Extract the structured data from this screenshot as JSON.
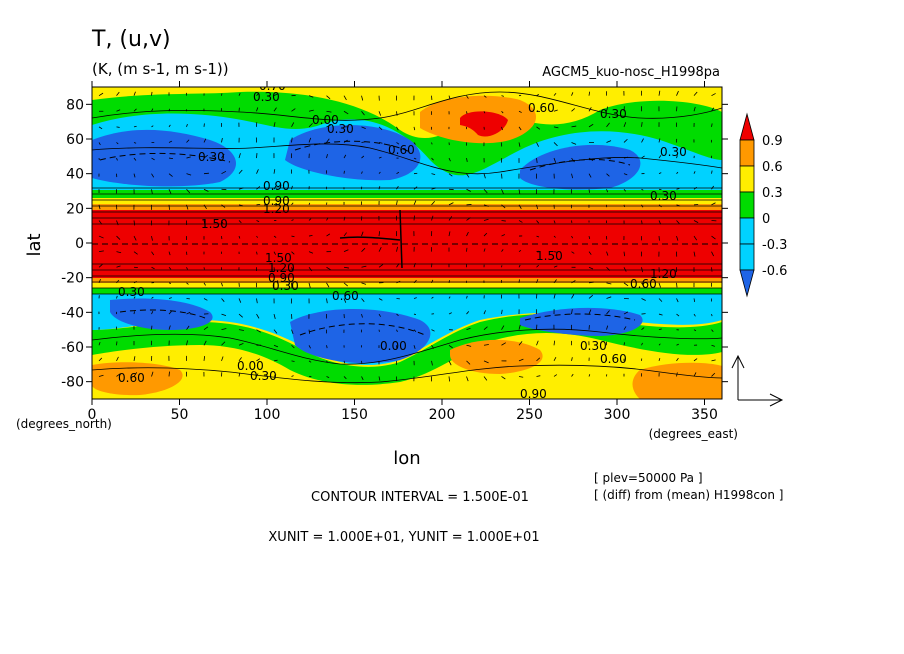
{
  "chart_data": {
    "type": "heatmap",
    "title": "T, (u,v)",
    "subtitle": "(K, (m s-1, m s-1))",
    "experiment": "AGCM5_kuo-nosc_H1998pa",
    "xlabel": "lon",
    "ylabel": "lat",
    "x_unit_label": "(degrees_east)",
    "y_unit_label": "(degrees_north)",
    "xlim": [
      0,
      360
    ],
    "ylim": [
      -90,
      90
    ],
    "xticks": [
      0,
      50,
      100,
      150,
      200,
      250,
      300,
      350
    ],
    "yticks": [
      -80,
      -60,
      -40,
      -20,
      0,
      20,
      40,
      60,
      80
    ],
    "colorbar": {
      "levels": [
        -0.6,
        -0.3,
        0,
        0.3,
        0.6,
        0.9
      ],
      "tick_labels": [
        "0.9",
        "0.6",
        "0.3",
        "0",
        "-0.3",
        "-0.6"
      ],
      "colors": [
        "#1e64e6",
        "#00d2ff",
        "#00dc00",
        "#ffee00",
        "#ff9900",
        "#ee0000"
      ]
    },
    "contour_labels": [
      "0.70",
      "0.30",
      "0.60",
      "0.30",
      "0.00",
      "0.30",
      "0.60",
      "0.30",
      "0.90",
      "0.30",
      "0.90",
      "1.20",
      "1.50",
      "1.50",
      "1.50",
      "1.20",
      "0.90",
      "0.30",
      "0.30",
      "0.60",
      "0.00",
      "0.30",
      "0.60",
      "0.00",
      "0.30",
      "0.60",
      "0.90",
      "1.20",
      "0.60",
      "0.30"
    ],
    "footer": {
      "info1": "[ plev=50000 Pa ]",
      "info2": "[ (diff) from (mean) H1998con ]",
      "contour_interval": "CONTOUR INTERVAL = 1.500E-01",
      "units": "XUNIT = 1.000E+01, YUNIT = 1.000E+01"
    }
  },
  "colors": {
    "red": "#ee0000",
    "orange": "#ff9900",
    "yellow": "#ffee00",
    "green": "#00dc00",
    "cyan": "#00d2ff",
    "blue": "#1e64e6"
  }
}
